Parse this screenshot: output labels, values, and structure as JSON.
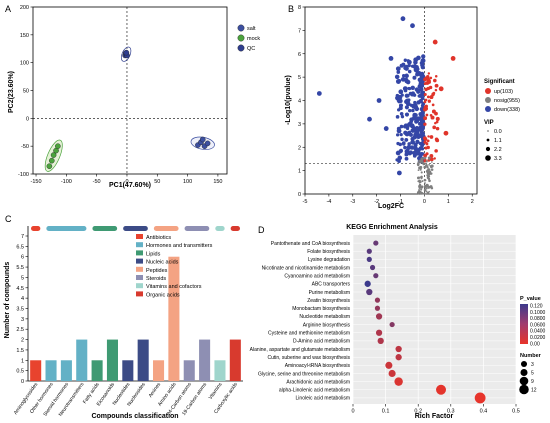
{
  "colors": {
    "salt": "#3c4fa0",
    "mock": "#4ba33d",
    "qc": "#2f3e8f",
    "up": "#e0342a",
    "nosig": "#7f7f7f",
    "down": "#3446a6",
    "cat_colors": [
      "#e8432e",
      "#63b1c6",
      "#3f9a73",
      "#3c4b86",
      "#f4a383",
      "#8e8fb3",
      "#9fd5cc",
      "#d83a2e"
    ],
    "kegg_high": "#3c3a8c",
    "kegg_low": "#e8342a"
  },
  "panels": {
    "A": {
      "letter": "A"
    },
    "B": {
      "letter": "B"
    },
    "C": {
      "letter": "C"
    },
    "D": {
      "letter": "D"
    }
  },
  "chart_data": [
    {
      "panel": "A",
      "type": "scatter",
      "xlabel": "PC1(47.60%)",
      "ylabel": "PC2(23.60%)",
      "xlim": [
        -155,
        165
      ],
      "ylim": [
        -100,
        200
      ],
      "xticks": [
        "-150",
        "-100",
        "-50",
        "0",
        "50",
        "100",
        "150"
      ],
      "yticks": [
        "-100",
        "-50",
        "0",
        "50",
        "100",
        "150",
        "200"
      ],
      "legend": [
        "salt",
        "mock",
        "QC"
      ],
      "series": [
        {
          "name": "salt",
          "points": [
            [
              117,
              -48
            ],
            [
              122,
              -43
            ],
            [
              128,
              -50
            ],
            [
              133,
              -45
            ],
            [
              125,
              -38
            ]
          ]
        },
        {
          "name": "mock",
          "points": [
            [
              -128,
              -86
            ],
            [
              -124,
              -76
            ],
            [
              -121,
              -66
            ],
            [
              -117,
              -58
            ],
            [
              -114,
              -50
            ]
          ]
        },
        {
          "name": "QC",
          "points": [
            [
              -3,
              113
            ],
            [
              -1,
              115
            ],
            [
              -2,
              117
            ],
            [
              0,
              113
            ],
            [
              -1,
              118
            ]
          ]
        }
      ]
    },
    {
      "panel": "B",
      "type": "scatter",
      "xlabel": "Log2FC",
      "ylabel": "-Log10(pvalue)",
      "xlim": [
        -5,
        2.2
      ],
      "ylim": [
        0,
        8
      ],
      "xticks": [
        "-5",
        "-4",
        "-3",
        "-2",
        "-1",
        "0",
        "1",
        "2"
      ],
      "yticks": [
        "0",
        "1",
        "2",
        "3",
        "4",
        "5",
        "6",
        "7",
        "8"
      ],
      "legend_title": "Significant",
      "legend": [
        "up(103)",
        "nosig(955)",
        "down(338)"
      ],
      "vip_title": "VIP",
      "vip_sizes": [
        "0.0",
        "1.1",
        "2.2",
        "3.3"
      ],
      "highlight_points": {
        "down": [
          [
            -4.4,
            4.3
          ],
          [
            -2.3,
            3.2
          ],
          [
            -0.9,
            7.5
          ],
          [
            -0.5,
            7.2
          ],
          [
            -1.05,
            0.9
          ],
          [
            -1.9,
            4.0
          ],
          [
            -1.4,
            5.8
          ],
          [
            -1.6,
            2.8
          ]
        ],
        "up": [
          [
            1.2,
            5.8
          ],
          [
            0.9,
            2.6
          ],
          [
            0.7,
            4.5
          ],
          [
            0.45,
            6.5
          ]
        ]
      }
    },
    {
      "panel": "C",
      "type": "bar",
      "xlabel": "Compounds classification",
      "ylabel": "Number of compounds",
      "ylim": [
        0,
        7
      ],
      "yticks": [
        "0",
        "0.5",
        "1",
        "1.5",
        "2",
        "2.5",
        "3",
        "3.5",
        "4",
        "4.5",
        "5",
        "5.5",
        "6",
        "6.5",
        "7"
      ],
      "categories": [
        "Aminoglycosides",
        "Other hormones",
        "Steroid hormones",
        "Neurotransmitters",
        "Fatty acids",
        "Eicosanoids",
        "Nucleotides",
        "Nucleosides",
        "Amines",
        "Amino acids",
        "24-Carbon atoms",
        "19-Carbon atoms",
        "Vitamins",
        "Carboxylic acids"
      ],
      "values": [
        1,
        1,
        1,
        2,
        1,
        2,
        1,
        2,
        1,
        6,
        1,
        2,
        1,
        2
      ],
      "category_class": [
        0,
        1,
        1,
        1,
        2,
        2,
        3,
        3,
        4,
        4,
        5,
        5,
        6,
        7
      ],
      "legend": [
        "Antibiotics",
        "Hormones and transmitters",
        "Lipids",
        "Nucleic acids",
        "Peptides",
        "Steroids",
        "Vitamins and cofactors",
        "Organic acids"
      ]
    },
    {
      "panel": "D",
      "type": "scatter",
      "title": "KEGG Enrichment Analysis",
      "xlabel": "Rich Factor",
      "xlim": [
        0,
        0.5
      ],
      "xticks": [
        "0",
        "0.1",
        "0.2",
        "0.3",
        "0.4",
        "0.5"
      ],
      "pathways": [
        "Pantothenate and CoA biosynthesis",
        "Folate biosynthesis",
        "Lysine degradation",
        "Nicotinate and nicotinamide metabolism",
        "Cyanoamino acid metabolism",
        "ABC transporters",
        "Purine metabolism",
        "Zeatin biosynthesis",
        "Monobactam biosynthesis",
        "Nucleotide metabolism",
        "Arginine biosynthesis",
        "Cysteine and methionine metabolism",
        "D-Amino acid metabolism",
        "Alanine, aspartate and glutamate metabolism",
        "Cutin, suberine and wax biosynthesis",
        "Aminoacyl-tRNA biosynthesis",
        "Glycine, serine and threonine metabolism",
        "Arachidonic acid metabolism",
        "alpha-Linolenic acid metabolism",
        "Linoleic acid metabolism"
      ],
      "rich_factor": [
        0.07,
        0.05,
        0.05,
        0.06,
        0.07,
        0.045,
        0.05,
        0.075,
        0.075,
        0.08,
        0.12,
        0.08,
        0.085,
        0.14,
        0.14,
        0.11,
        0.12,
        0.14,
        0.27,
        0.39
      ],
      "pvalue": [
        0.09,
        0.1,
        0.11,
        0.1,
        0.09,
        0.12,
        0.1,
        0.06,
        0.06,
        0.05,
        0.07,
        0.04,
        0.04,
        0.03,
        0.03,
        0.02,
        0.02,
        0.01,
        0.003,
        0.001
      ],
      "number": [
        1,
        1,
        1,
        1,
        1,
        2,
        2,
        1,
        1,
        2,
        1,
        2,
        2,
        2,
        2,
        3,
        3,
        5,
        8,
        10
      ],
      "pvalue_legend_title": "P_value",
      "pvalue_ticks": [
        "0.120",
        "0.1000",
        "0.0800",
        "0.0600",
        "0.0400",
        "0.0200",
        "0.00"
      ],
      "number_legend_title": "Number",
      "number_legend": [
        "3",
        "5",
        "9",
        "12"
      ]
    }
  ]
}
